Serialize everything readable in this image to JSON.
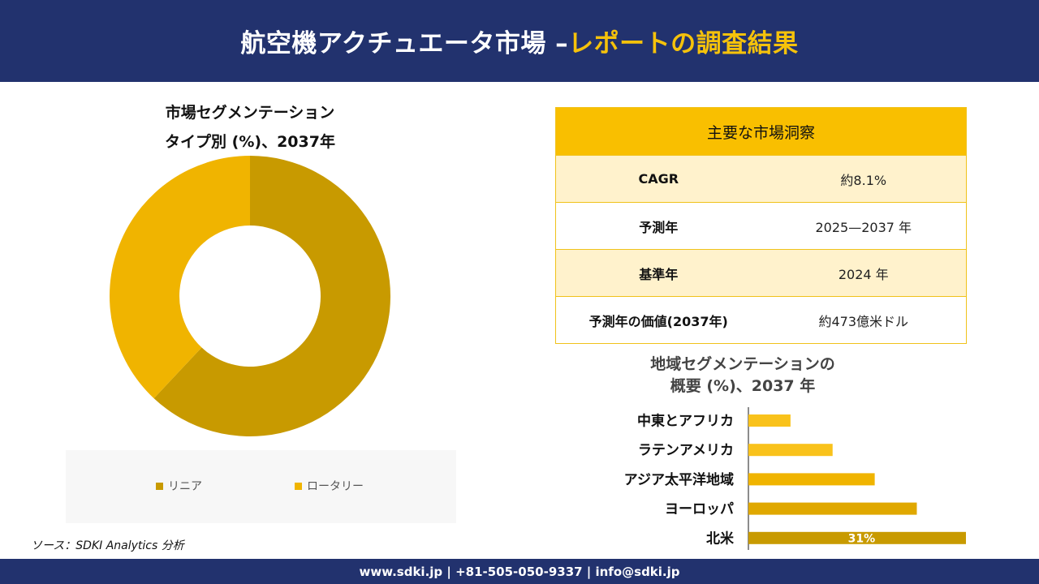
{
  "header": {
    "title_main": "航空機アクチュエータ市場 –",
    "title_accent": "レポートの調査結果"
  },
  "donut": {
    "title_line1": "市場セグメンテーション",
    "title_line2": "タイプ別 (%)、2037年"
  },
  "insights": {
    "heading": "主要な市場洞察",
    "rows": [
      {
        "label": "CAGR",
        "value": "約8.1%"
      },
      {
        "label": "予測年",
        "value": "2025—2037 年"
      },
      {
        "label": "基準年",
        "value": "2024 年"
      },
      {
        "label": "予測年の価値(2037年)",
        "value": "約473億米ドル"
      }
    ]
  },
  "regional": {
    "title_line1": "地域セグメンテーションの",
    "title_line2": "概要 (%)、2037 年"
  },
  "source": "ソース：SDKI Analytics 分析",
  "footer": {
    "contact": "www.sdki.jp | +81-505-050-9337 | info@sdki.jp"
  },
  "chart_data": [
    {
      "type": "pie",
      "donut": true,
      "categories": [
        "リニア",
        "ロータリー"
      ],
      "values": [
        62,
        38
      ],
      "colors": [
        "#c89a00",
        "#f0b400"
      ],
      "legend": "bottom"
    },
    {
      "type": "bar",
      "orientation": "horizontal",
      "categories": [
        "中東とアフリカ",
        "ラテンアメリカ",
        "アジア太平洋地域",
        "ヨーロッパ",
        "北米"
      ],
      "values": [
        6,
        12,
        18,
        24,
        31
      ],
      "data_labels": [
        "",
        "",
        "",
        "",
        "31%"
      ],
      "colors": [
        "#f9c21b",
        "#f9c21b",
        "#f0b400",
        "#e0a800",
        "#c89a00"
      ],
      "xlim": [
        0,
        31
      ]
    }
  ]
}
